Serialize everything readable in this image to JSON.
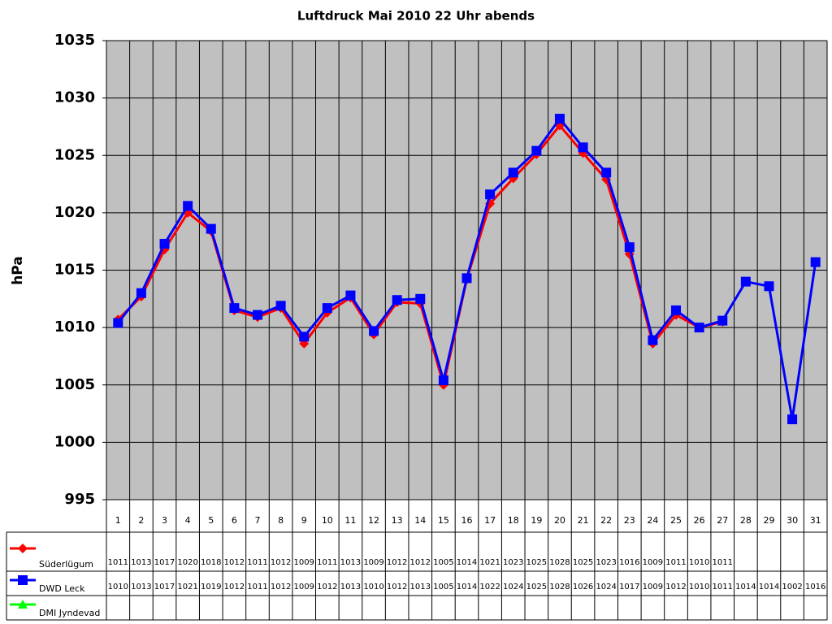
{
  "chart_data": {
    "type": "line",
    "title": "Luftdruck Mai 2010 22 Uhr abends",
    "y_label": "hPa",
    "categories": [
      "1",
      "2",
      "3",
      "4",
      "5",
      "6",
      "7",
      "8",
      "9",
      "10",
      "11",
      "12",
      "13",
      "14",
      "15",
      "16",
      "17",
      "18",
      "19",
      "20",
      "21",
      "22",
      "23",
      "24",
      "25",
      "26",
      "27",
      "28",
      "29",
      "30",
      "31"
    ],
    "ylim": [
      995,
      1035
    ],
    "yticks": [
      995,
      1000,
      1005,
      1010,
      1015,
      1020,
      1025,
      1030,
      1035
    ],
    "grid": true,
    "series": [
      {
        "name": "Süderlügum",
        "color": "#ff0000",
        "marker": "diamond",
        "values": [
          1010.7,
          1012.7,
          1016.8,
          1020.0,
          1018.4,
          1011.5,
          1010.9,
          1011.7,
          1008.6,
          1011.3,
          1012.6,
          1009.4,
          1012.2,
          1012.1,
          1005.0,
          1014.2,
          1020.8,
          1023.0,
          1025.1,
          1027.6,
          1025.2,
          1022.9,
          1016.4,
          1008.6,
          1011.1,
          1010.0,
          1010.5,
          null,
          null,
          null,
          null
        ],
        "value_labels": [
          "1011",
          "1013",
          "1017",
          "1020",
          "1018",
          "1012",
          "1011",
          "1012",
          "1009",
          "1011",
          "1013",
          "1009",
          "1012",
          "1012",
          "1005",
          "1014",
          "1021",
          "1023",
          "1025",
          "1028",
          "1025",
          "1023",
          "1016",
          "1009",
          "1011",
          "1010",
          "1011",
          null,
          null,
          null,
          null
        ]
      },
      {
        "name": "DWD Leck",
        "color": "#0000ff",
        "marker": "square",
        "values": [
          1010.4,
          1013.0,
          1017.3,
          1020.6,
          1018.6,
          1011.7,
          1011.1,
          1011.9,
          1009.2,
          1011.7,
          1012.8,
          1009.7,
          1012.4,
          1012.5,
          1005.4,
          1014.3,
          1021.6,
          1023.5,
          1025.4,
          1028.2,
          1025.7,
          1023.5,
          1017.0,
          1008.9,
          1011.5,
          1010.0,
          1010.6,
          1014.0,
          1013.6,
          1002.0,
          1015.7
        ],
        "value_labels": [
          "1010",
          "1013",
          "1017",
          "1021",
          "1019",
          "1012",
          "1011",
          "1012",
          "1009",
          "1012",
          "1013",
          "1010",
          "1012",
          "1013",
          "1005",
          "1014",
          "1022",
          "1024",
          "1025",
          "1028",
          "1026",
          "1024",
          "1017",
          "1009",
          "1012",
          "1010",
          "1011",
          "1014",
          "1014",
          "1002",
          "1016"
        ]
      },
      {
        "name": "DMI Jyndevad",
        "color": "#00ff00",
        "marker": "triangle",
        "values": [
          null,
          null,
          null,
          null,
          null,
          null,
          null,
          null,
          null,
          null,
          null,
          null,
          null,
          null,
          null,
          null,
          null,
          null,
          null,
          null,
          null,
          null,
          null,
          null,
          null,
          null,
          null,
          null,
          null,
          null,
          null
        ],
        "value_labels": [
          null,
          null,
          null,
          null,
          null,
          null,
          null,
          null,
          null,
          null,
          null,
          null,
          null,
          null,
          null,
          null,
          null,
          null,
          null,
          null,
          null,
          null,
          null,
          null,
          null,
          null,
          null,
          null,
          null,
          null,
          null
        ]
      }
    ]
  }
}
